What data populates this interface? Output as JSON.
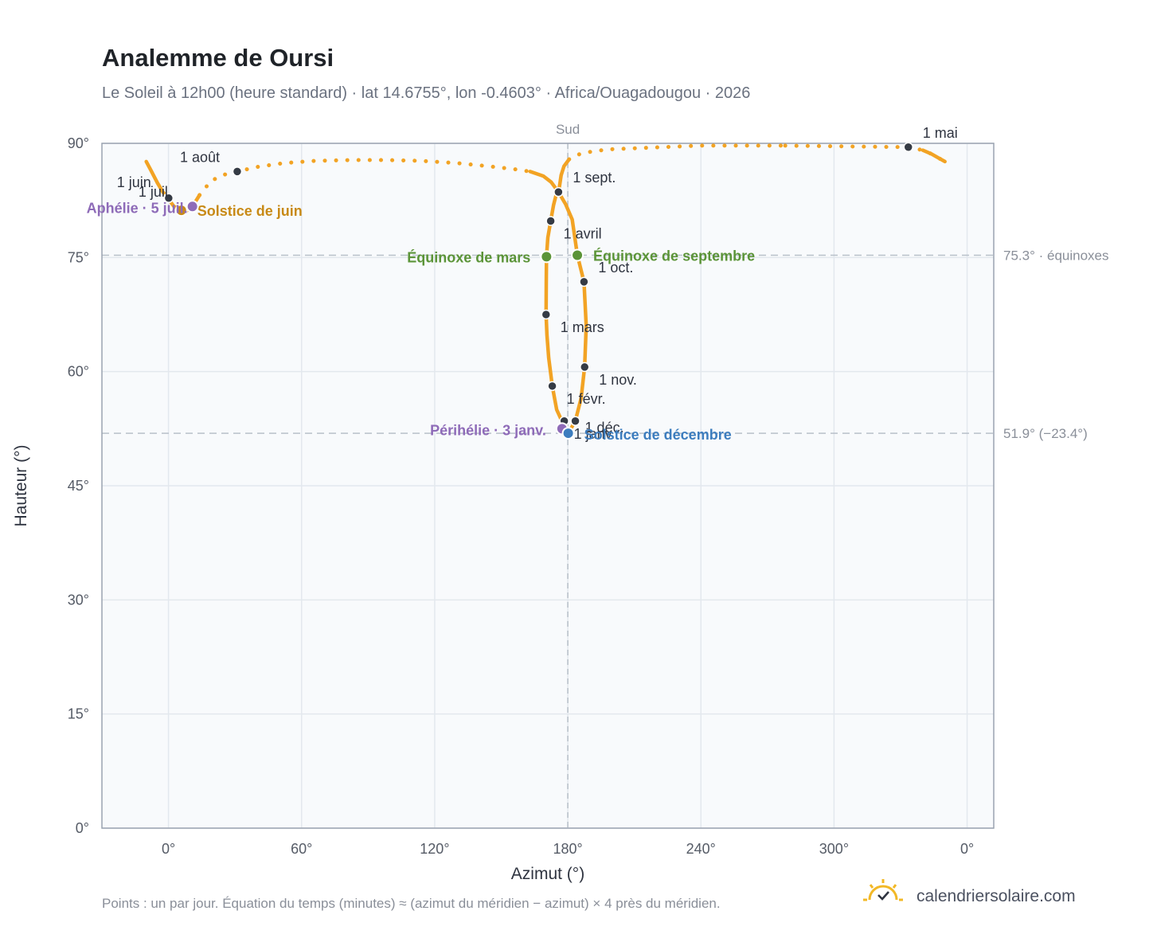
{
  "header": {
    "title": "Analemme de Oursi",
    "subtitle": "Le Soleil à 12h00 (heure standard) · lat 14.6755°, lon -0.4603° · Africa/Ouagadougou · 2026"
  },
  "footer": {
    "note": "Points : un par jour. Équation du temps (minutes) ≈ (azimut du méridien − azimut) × 4 près du méridien.",
    "brand": "calendriersolaire.com"
  },
  "colors": {
    "curve": "#f2a324",
    "month_dot": "#353b45",
    "aphelion_perihelion": "#8e6bb8",
    "june_solstice": "#c88a16",
    "december_solstice": "#3d7dbe",
    "equinox": "#5b9438",
    "plot_background": "#f8fafc",
    "grid": "#e3e8ee",
    "reference_line": "#b8c0c9"
  },
  "chart_data": {
    "type": "scatter",
    "title": "Analemme de Oursi",
    "xlabel": "Azimut (°)",
    "ylabel": "Hauteur (°)",
    "xlim": [
      -30,
      372
    ],
    "ylim": [
      0,
      90
    ],
    "x_ticks": [
      "0°",
      "60°",
      "120°",
      "180°",
      "240°",
      "300°",
      "0°"
    ],
    "y_ticks": [
      "0°",
      "15°",
      "30°",
      "45°",
      "60°",
      "75°",
      "90°"
    ],
    "grid": true,
    "meridian": {
      "label": "Sud",
      "azimuth": 180
    },
    "reference_lines": [
      {
        "label": "75.3° · équinoxes",
        "altitude": 75.3
      },
      {
        "label": "51.9° (−23.4°)",
        "altitude": 51.9
      }
    ],
    "month_markers": [
      {
        "label": "1 janv.",
        "azimuth": 178.4,
        "altitude": 53.5
      },
      {
        "label": "1 févr.",
        "azimuth": 173.0,
        "altitude": 58.1
      },
      {
        "label": "1 mars",
        "azimuth": 170.2,
        "altitude": 67.5
      },
      {
        "label": "1 avril",
        "azimuth": 172.3,
        "altitude": 79.8
      },
      {
        "label": "1 mai",
        "azimuth": 333.5,
        "altitude": 89.5
      },
      {
        "label": "1 juin",
        "azimuth": -0.3,
        "altitude": 82.8
      },
      {
        "label": "1 juil.",
        "azimuth": 0.1,
        "altitude": 82.8
      },
      {
        "label": "1 août",
        "azimuth": 31.0,
        "altitude": 86.3
      },
      {
        "label": "1 sept.",
        "azimuth": 175.8,
        "altitude": 83.6
      },
      {
        "label": "1 oct.",
        "azimuth": 187.3,
        "altitude": 71.8
      },
      {
        "label": "1 nov.",
        "azimuth": 187.6,
        "altitude": 60.6
      },
      {
        "label": "1 déc.",
        "azimuth": 183.4,
        "altitude": 53.5
      }
    ],
    "events": [
      {
        "label": "Périhélie · 3 janv.",
        "azimuth": 177.4,
        "altitude": 52.5,
        "color": "#8e6bb8"
      },
      {
        "label": "Solstice de décembre",
        "azimuth": 180.2,
        "altitude": 51.9,
        "color": "#3d7dbe"
      },
      {
        "label": "Équinoxe de mars",
        "azimuth": 170.4,
        "altitude": 75.1,
        "color": "#5b9438"
      },
      {
        "label": "Équinoxe de septembre",
        "azimuth": 184.3,
        "altitude": 75.3,
        "color": "#5b9438"
      },
      {
        "label": "Solstice de juin",
        "azimuth": 5.8,
        "altitude": 81.2,
        "color": "#c88a16"
      },
      {
        "label": "Aphélie · 5 juil.",
        "azimuth": 10.8,
        "altitude": 81.7,
        "color": "#8e6bb8"
      }
    ],
    "analemma_path": [
      [
        178.4,
        53.5
      ],
      [
        177.4,
        52.5
      ],
      [
        177.5,
        53.4
      ],
      [
        175.0,
        55.0
      ],
      [
        173.0,
        58.1
      ],
      [
        171.4,
        61.8
      ],
      [
        170.6,
        64.8
      ],
      [
        170.2,
        67.5
      ],
      [
        170.3,
        71.5
      ],
      [
        170.4,
        75.1
      ],
      [
        171.0,
        77.6
      ],
      [
        172.3,
        79.8
      ],
      [
        173.6,
        81.9
      ],
      [
        174.8,
        83.3
      ],
      [
        175.8,
        83.6
      ],
      [
        176.4,
        84.6
      ],
      [
        177.0,
        85.8
      ],
      [
        178.3,
        87.0
      ],
      [
        180.6,
        87.9
      ],
      [
        184.5,
        88.5
      ],
      [
        188.0,
        88.8
      ],
      [
        198.0,
        89.2
      ],
      [
        239.0,
        89.7
      ],
      [
        278.0,
        89.7
      ],
      [
        333.5,
        89.5
      ],
      [
        340.0,
        89.1
      ],
      [
        344.0,
        88.6
      ],
      [
        347.0,
        88.1
      ],
      [
        350.0,
        87.6
      ]
    ],
    "analemma_path_west": [
      [
        -10.0,
        87.6
      ],
      [
        -8.0,
        86.5
      ],
      [
        -5.0,
        84.8
      ],
      [
        -2.5,
        83.6
      ],
      [
        -0.3,
        82.8
      ],
      [
        2.5,
        81.7
      ],
      [
        5.8,
        81.2
      ],
      [
        7.5,
        81.0
      ],
      [
        10.8,
        81.7
      ],
      [
        14.0,
        83.2
      ],
      [
        19.0,
        85.0
      ],
      [
        24.0,
        85.8
      ],
      [
        31.0,
        86.3
      ],
      [
        40.0,
        86.9
      ],
      [
        52.0,
        87.4
      ],
      [
        66.0,
        87.7
      ],
      [
        82.0,
        87.8
      ],
      [
        98.0,
        87.8
      ],
      [
        114.0,
        87.7
      ],
      [
        130.0,
        87.4
      ],
      [
        144.0,
        87.0
      ],
      [
        156.0,
        86.6
      ],
      [
        163.0,
        86.3
      ],
      [
        169.0,
        85.7
      ],
      [
        172.5,
        84.9
      ],
      [
        175.8,
        83.6
      ]
    ],
    "analemma_path_autumn": [
      [
        175.8,
        83.6
      ],
      [
        179.0,
        82.0
      ],
      [
        182.0,
        80.0
      ],
      [
        184.3,
        75.3
      ],
      [
        187.3,
        71.8
      ],
      [
        188.3,
        66.0
      ],
      [
        187.6,
        60.6
      ],
      [
        186.0,
        56.5
      ],
      [
        183.4,
        53.5
      ],
      [
        180.2,
        51.9
      ],
      [
        178.4,
        53.5
      ]
    ]
  }
}
